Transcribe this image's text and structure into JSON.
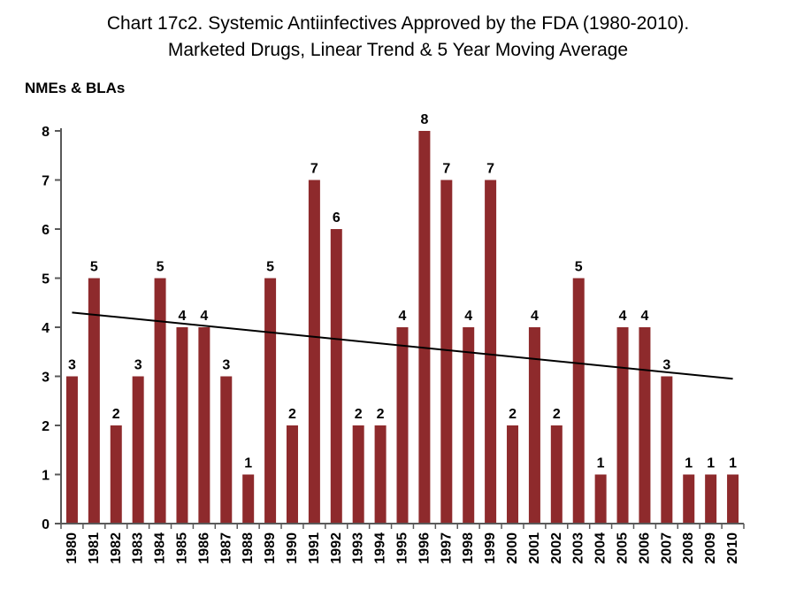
{
  "page": {
    "title_line1": "Chart 17c2. Systemic Antiinfectives Approved by the FDA (1980-2010).",
    "title_line2": "Marketed Drugs, Linear Trend & 5 Year Moving Average",
    "axis_title": "NMEs & BLAs"
  },
  "colors": {
    "background": "#ffffff",
    "bar": "#8E2A2C",
    "trend_line": "#000000",
    "axis": "#595959",
    "text": "#000000"
  },
  "chart_data": {
    "type": "bar",
    "title": "Chart 17c2. Systemic Antiinfectives Approved by the FDA (1980-2010). Marketed Drugs, Linear Trend & 5 Year Moving Average",
    "ylabel": "NMEs & BLAs",
    "xlabel": "",
    "categories": [
      "1980",
      "1981",
      "1982",
      "1983",
      "1984",
      "1985",
      "1986",
      "1987",
      "1988",
      "1989",
      "1990",
      "1991",
      "1992",
      "1993",
      "1994",
      "1995",
      "1996",
      "1997",
      "1998",
      "1999",
      "2000",
      "2001",
      "2002",
      "2003",
      "2004",
      "2005",
      "2006",
      "2007",
      "2008",
      "2009",
      "2010"
    ],
    "values": [
      3,
      5,
      2,
      3,
      5,
      4,
      4,
      3,
      1,
      5,
      2,
      7,
      6,
      2,
      2,
      4,
      8,
      7,
      4,
      7,
      2,
      4,
      2,
      5,
      1,
      4,
      4,
      3,
      1,
      1,
      1
    ],
    "ylim": [
      0,
      8
    ],
    "yticks": [
      0,
      1,
      2,
      3,
      4,
      5,
      6,
      7,
      8
    ],
    "grid": false,
    "legend_position": "none",
    "data_labels": true,
    "bar_color": "#8E2A2C",
    "trend_line": {
      "name": "Linear Trend",
      "color": "#000000",
      "start": {
        "x": "1980",
        "y": 4.3
      },
      "end": {
        "x": "2010",
        "y": 2.95
      }
    }
  }
}
